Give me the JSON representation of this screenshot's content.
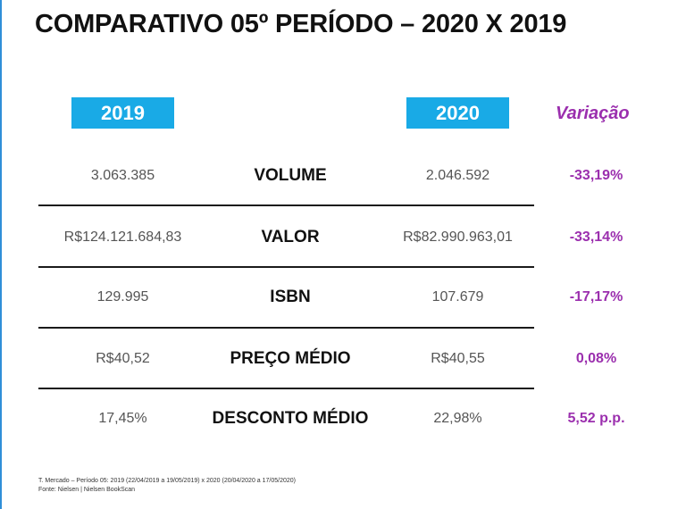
{
  "title": "COMPARATIVO 05º PERÍODO – 2020 X 2019",
  "headers": {
    "year_a": "2019",
    "year_b": "2020",
    "variation": "Variação"
  },
  "rows": [
    {
      "metric": "VOLUME",
      "v2019": "3.063.385",
      "v2020": "2.046.592",
      "variation": "-33,19%"
    },
    {
      "metric": "VALOR",
      "v2019": "R$124.121.684,83",
      "v2020": "R$82.990.963,01",
      "variation": "-33,14%"
    },
    {
      "metric": "ISBN",
      "v2019": "129.995",
      "v2020": "107.679",
      "variation": "-17,17%"
    },
    {
      "metric": "PREÇO MÉDIO",
      "v2019": "R$40,52",
      "v2020": "R$40,55",
      "variation": "0,08%"
    },
    {
      "metric": "DESCONTO MÉDIO",
      "v2019": "17,45%",
      "v2020": "22,98%",
      "variation": "5,52 p.p."
    }
  ],
  "footnotes": {
    "line1": "T. Mercado – Período 05: 2019 (22/04/2019 a 19/05/2019) x 2020 (20/04/2020 a 17/05/2020)",
    "line2": "Fonte: Nielsen | Nielsen BookScan"
  },
  "colors": {
    "badge": "#19aae6",
    "variation": "#9b2fae",
    "edge_line": "#2f8fd8"
  }
}
